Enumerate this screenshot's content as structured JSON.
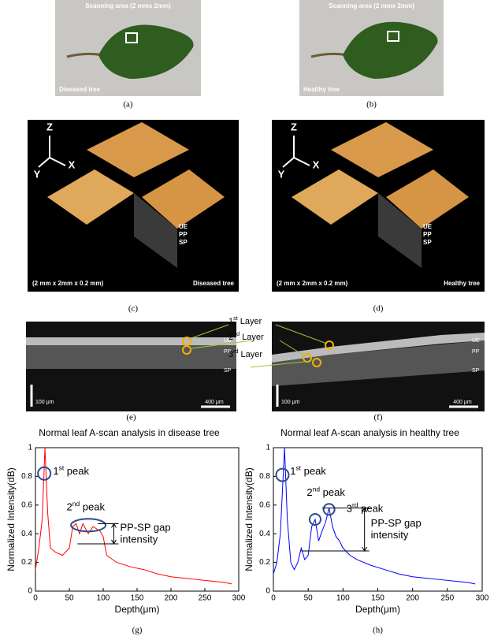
{
  "figure": {
    "panels": [
      {
        "label": "(a)",
        "title": "Scanning area (2 mmx 2mm)",
        "note": "Diseased tree"
      },
      {
        "label": "(b)",
        "title": "Scanning area (2 mmx 2mm)",
        "note": "Healthy tree"
      },
      {
        "label": "(c)",
        "axes": [
          "Z",
          "Y",
          "X"
        ],
        "layers": [
          "UE",
          "PP",
          "SP"
        ],
        "size": "(2 mm x 2mm x 0.2 mm)",
        "note": "Diseased tree"
      },
      {
        "label": "(d)",
        "axes": [
          "Z",
          "Y",
          "X"
        ],
        "layers": [
          "UE",
          "PP",
          "SP"
        ],
        "size": "(2 mm x 2mm x 0.2 mm)",
        "note": "Healthy tree"
      },
      {
        "label": "(e)",
        "layers": [
          "UE",
          "PP",
          "SP"
        ],
        "scale_v": "100 μm",
        "scale_h": "400 μm"
      },
      {
        "label": "(f)",
        "layers": [
          "UE",
          "PP",
          "SP"
        ],
        "scale_v": "100 μm",
        "scale_h": "400 μm"
      }
    ],
    "layer_labels": [
      {
        "num": "1",
        "sup": "st",
        "word": " Layer"
      },
      {
        "num": "2",
        "sup": "nd",
        "word": " Layer"
      },
      {
        "num": "3",
        "sup": "rd",
        "word": " Layer"
      }
    ]
  },
  "chart_data": [
    {
      "type": "line",
      "title": "Normal leaf A-scan analysis in disease tree",
      "caption": "(g)",
      "xlabel": "Depth(μm)",
      "ylabel": "Normalized Intensity(dB)",
      "color": "#ff0000",
      "x": [
        0,
        5,
        10,
        14,
        18,
        22,
        30,
        40,
        50,
        55,
        60,
        65,
        70,
        78,
        85,
        95,
        100,
        105,
        120,
        140,
        160,
        180,
        200,
        220,
        240,
        260,
        280,
        290
      ],
      "values": [
        0.15,
        0.3,
        0.5,
        1.0,
        0.55,
        0.3,
        0.27,
        0.25,
        0.3,
        0.45,
        0.47,
        0.4,
        0.47,
        0.4,
        0.45,
        0.42,
        0.38,
        0.25,
        0.2,
        0.17,
        0.15,
        0.12,
        0.1,
        0.09,
        0.08,
        0.07,
        0.06,
        0.05
      ],
      "xlim": [
        0,
        300
      ],
      "xticks": [
        0,
        50,
        100,
        150,
        200,
        250,
        300
      ],
      "ylim": [
        0,
        1
      ],
      "yticks": [
        0,
        0.2,
        0.4,
        0.6,
        0.8,
        1
      ],
      "peaks": [
        {
          "num": "1",
          "sup": "st",
          "word": " peak"
        },
        {
          "num": "2",
          "sup": "nd",
          "word": " peak"
        }
      ],
      "gap_label": [
        "PP-SP gap",
        "intensity"
      ]
    },
    {
      "type": "line",
      "title": "Normal leaf A-scan analysis in healthy tree",
      "caption": "(h)",
      "xlabel": "Depth(μm)",
      "ylabel": "Normalized Intensity(dB)",
      "color": "#0000ff",
      "x": [
        0,
        5,
        10,
        16,
        20,
        25,
        30,
        35,
        40,
        45,
        50,
        55,
        60,
        65,
        70,
        75,
        80,
        85,
        90,
        95,
        100,
        110,
        120,
        140,
        160,
        180,
        200,
        220,
        240,
        260,
        280,
        290
      ],
      "values": [
        0.12,
        0.2,
        0.4,
        1.0,
        0.5,
        0.2,
        0.15,
        0.2,
        0.3,
        0.22,
        0.25,
        0.45,
        0.5,
        0.35,
        0.42,
        0.48,
        0.58,
        0.45,
        0.38,
        0.35,
        0.3,
        0.25,
        0.22,
        0.18,
        0.15,
        0.12,
        0.1,
        0.09,
        0.08,
        0.07,
        0.06,
        0.05
      ],
      "xlim": [
        0,
        300
      ],
      "xticks": [
        0,
        50,
        100,
        150,
        200,
        250,
        300
      ],
      "ylim": [
        0,
        1
      ],
      "yticks": [
        0,
        0.2,
        0.4,
        0.6,
        0.8,
        1
      ],
      "peaks": [
        {
          "num": "1",
          "sup": "st",
          "word": " peak"
        },
        {
          "num": "2",
          "sup": "nd",
          "word": " peak"
        },
        {
          "num": "3",
          "sup": "rd",
          "word": " peak"
        }
      ],
      "gap_label": [
        "PP-SP gap",
        "intensity"
      ]
    }
  ]
}
